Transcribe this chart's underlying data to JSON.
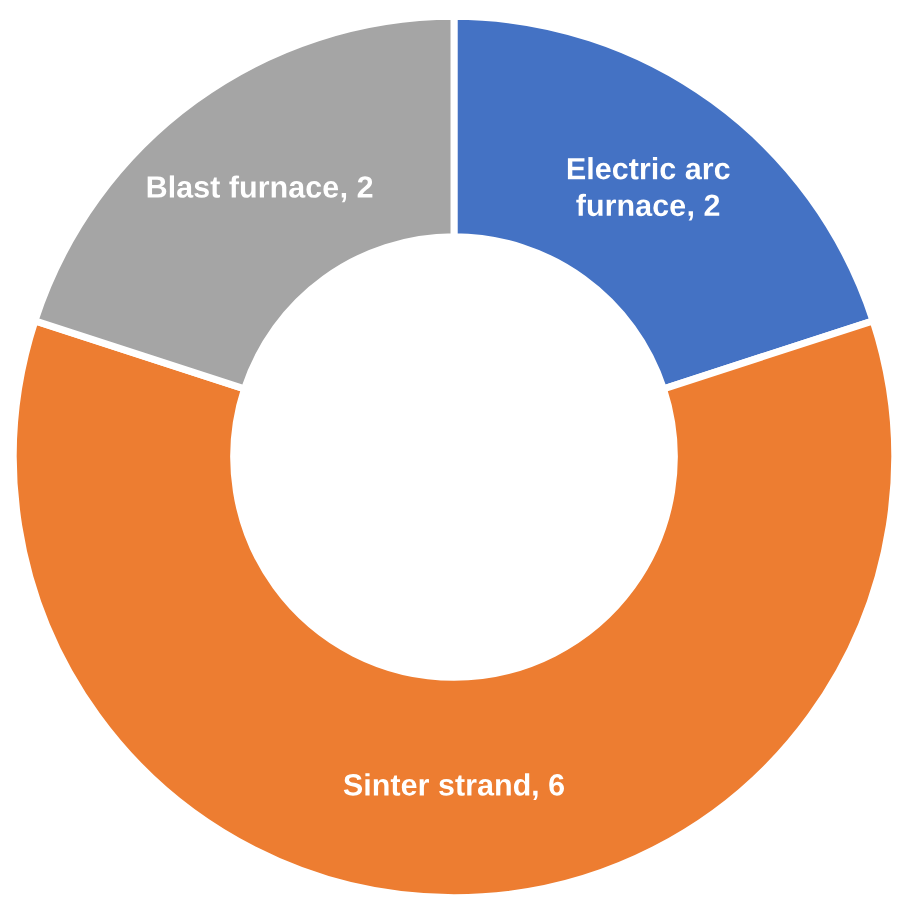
{
  "chart_data": {
    "type": "donut",
    "categories": [
      "Electric arc furnace",
      "Sinter strand",
      "Blast furnace"
    ],
    "values": [
      2,
      6,
      2
    ],
    "colors": [
      "#4472c4",
      "#ed7d31",
      "#a5a5a5"
    ],
    "value_labels": [
      ", 2",
      ", 6",
      ", 2"
    ],
    "legend": false
  }
}
